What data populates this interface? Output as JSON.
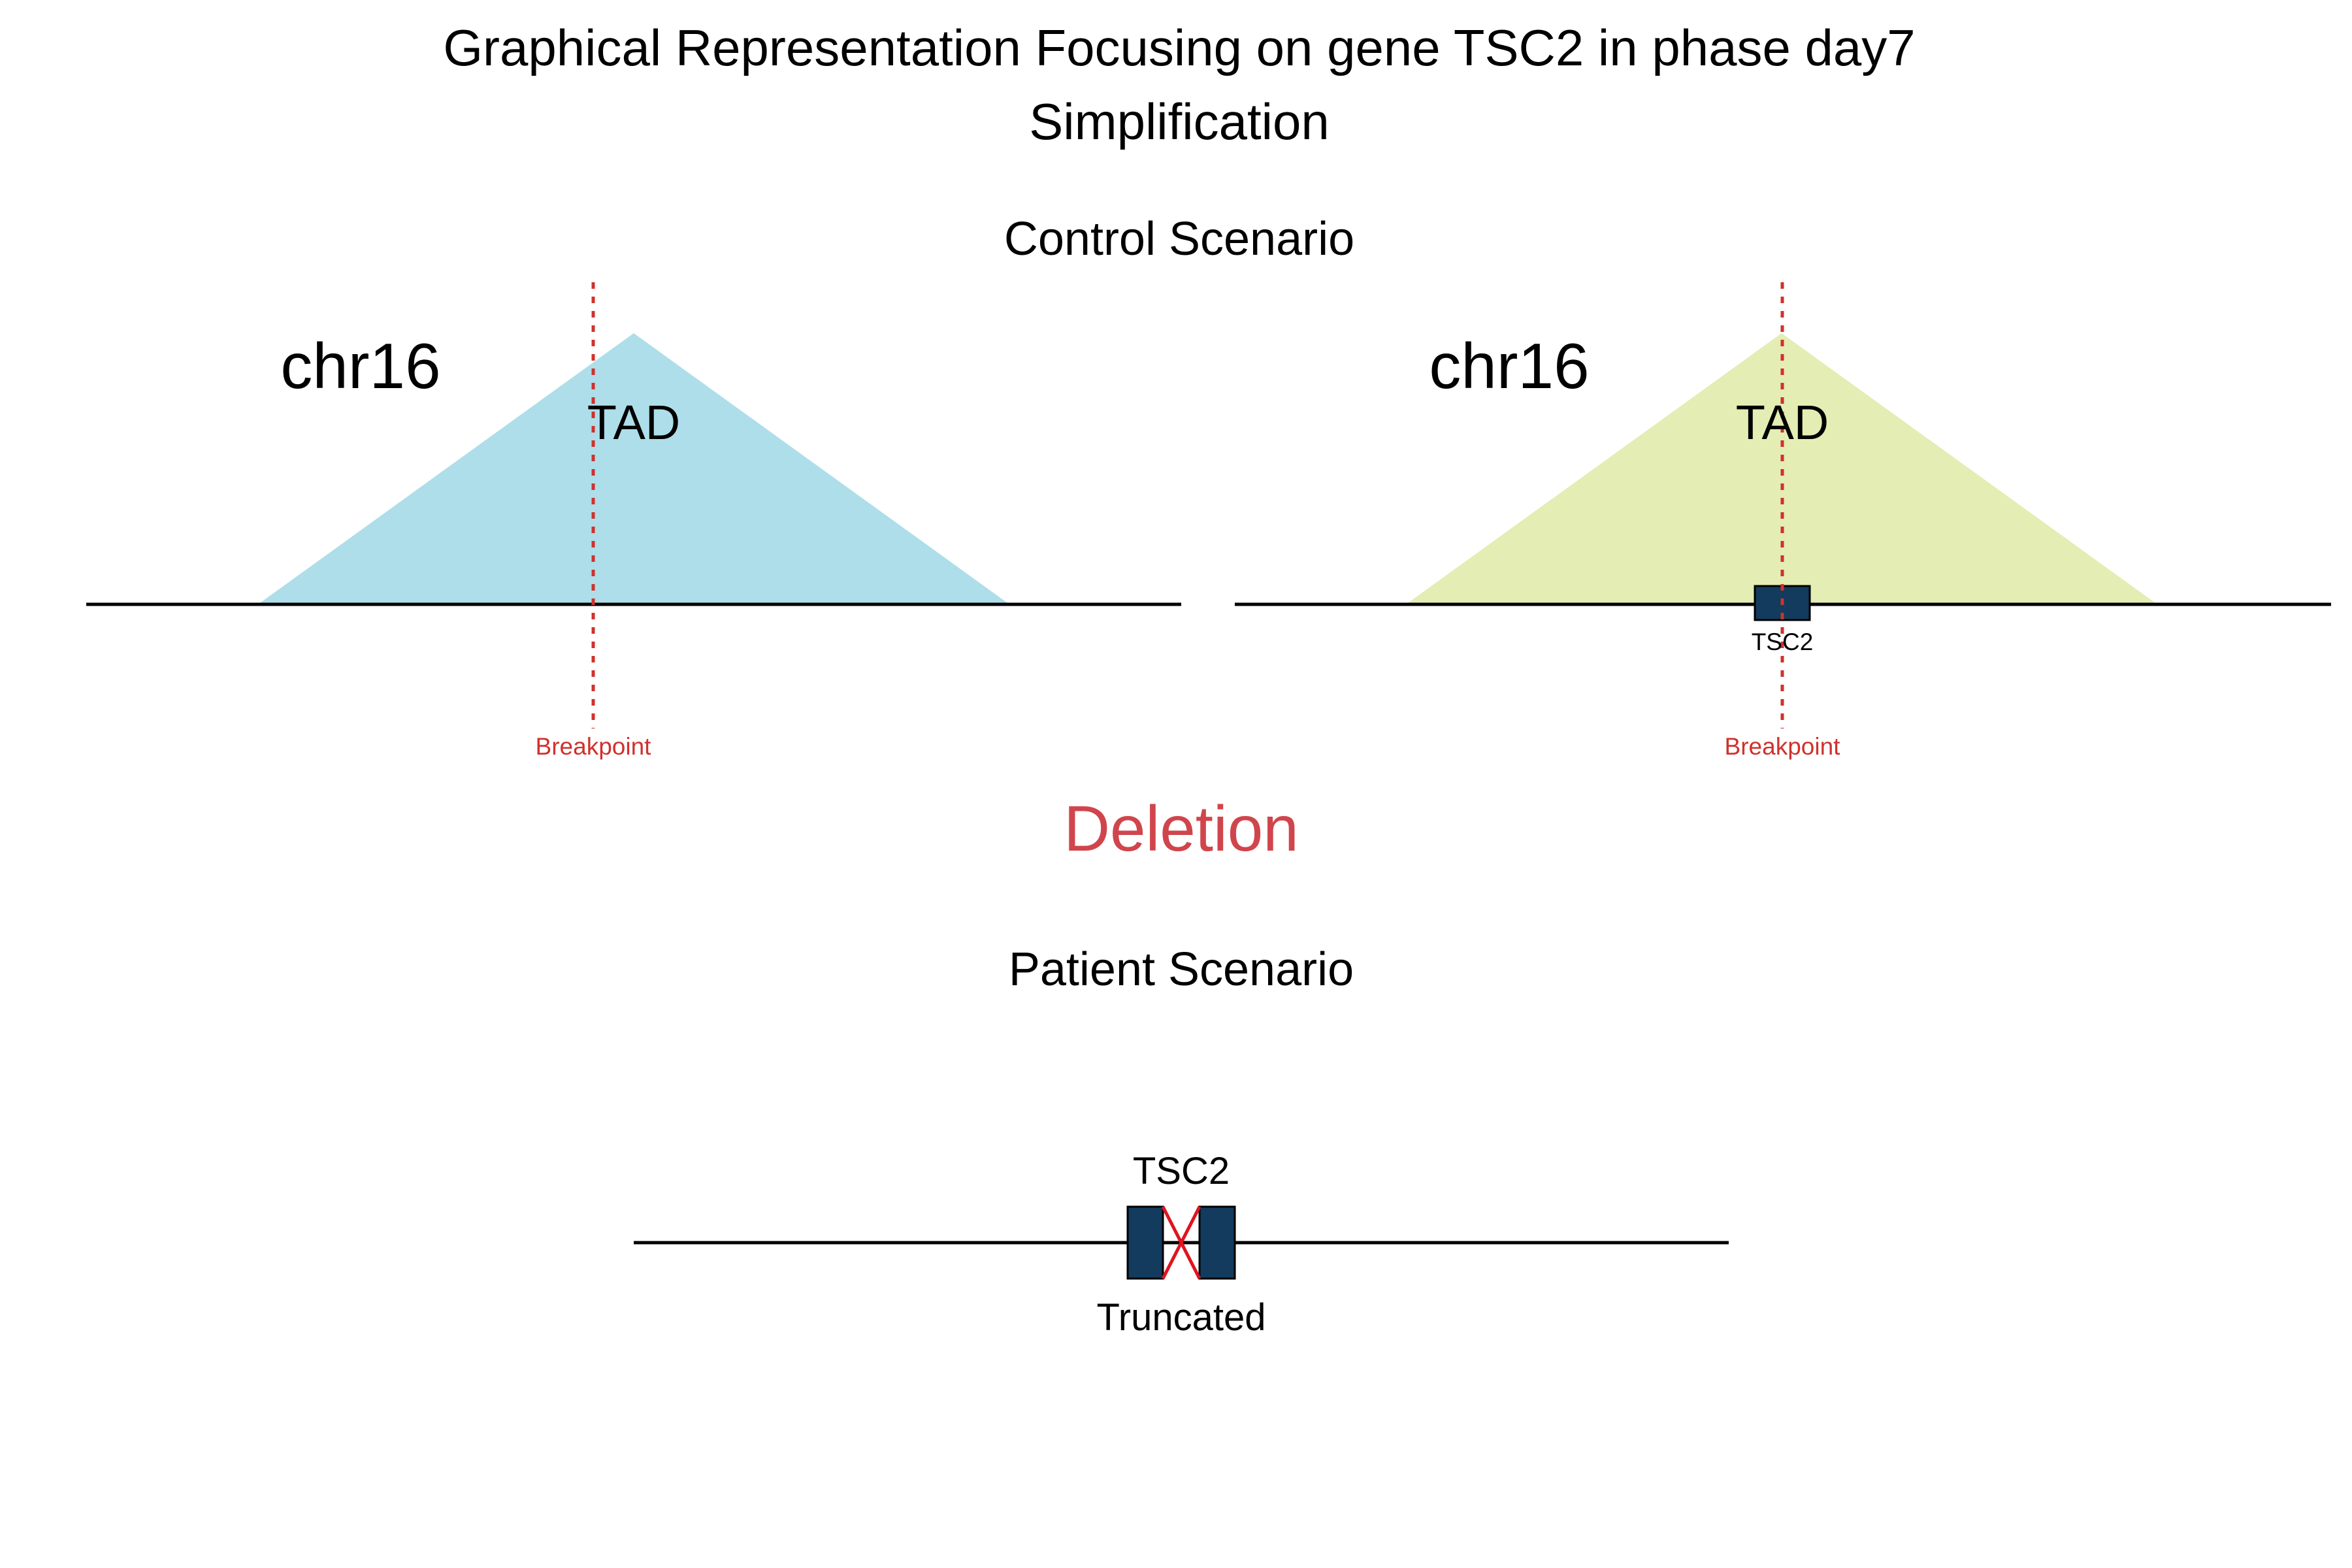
{
  "title": {
    "line1": "Graphical Representation Focusing on gene TSC2 in phase day7",
    "line2": "Simplification"
  },
  "control": {
    "heading": "Control Scenario",
    "left_panel": {
      "chromosome": "chr16",
      "tad_label": "TAD",
      "breakpoint_label": "Breakpoint",
      "tad_color": "#ADDEEA"
    },
    "right_panel": {
      "chromosome": "chr16",
      "tad_label": "TAD",
      "gene_label": "TSC2",
      "breakpoint_label": "Breakpoint",
      "tad_color": "#E4EDB3"
    }
  },
  "event": {
    "label": "Deletion",
    "color": "#D0454C"
  },
  "patient": {
    "heading": "Patient Scenario",
    "gene_label": "TSC2",
    "status_label": "Truncated"
  },
  "colors": {
    "gene_fill": "#123B5E",
    "breakpoint": "#D0312D",
    "cross": "#E0141E",
    "axis_line": "#000000"
  }
}
